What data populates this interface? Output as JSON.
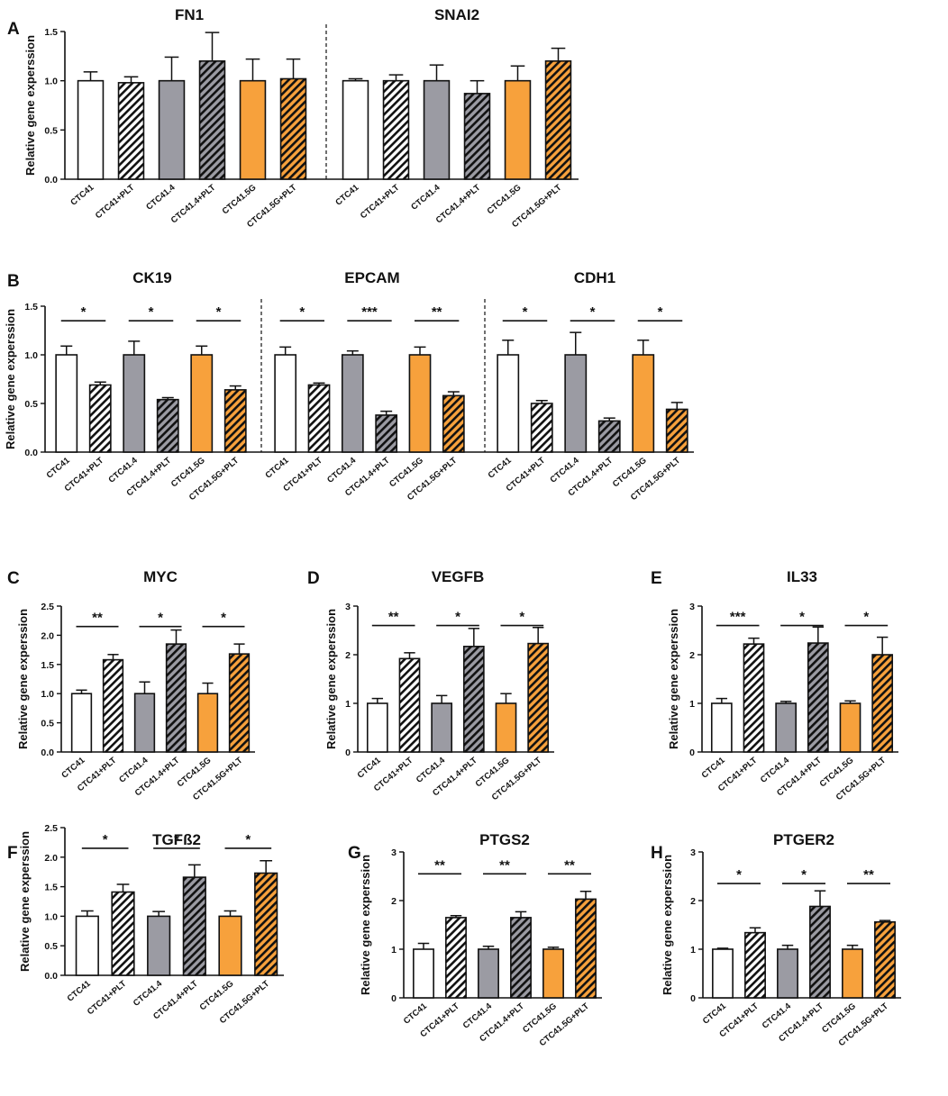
{
  "colors": {
    "white": "#ffffff",
    "gray": "#9b9ba3",
    "orange": "#f7a13c",
    "stroke": "#111111"
  },
  "ylabel": "Relative gene experssion",
  "categories": [
    "CTC41",
    "CTC41+PLT",
    "CTC41.4",
    "CTC41.4+PLT",
    "CTC41.5G",
    "CTC41.5G+PLT"
  ],
  "chart_data": [
    {
      "label": "A",
      "type": "bar",
      "ylabel": "Relative gene experssion",
      "ylim": [
        0,
        1.5
      ],
      "yticks": [
        "0.0",
        "0.5",
        "1.0",
        "1.5"
      ],
      "ytick_values": [
        0,
        0.5,
        1.0,
        1.5
      ],
      "groups": [
        {
          "title": "FN1",
          "values": [
            1.0,
            0.98,
            1.0,
            1.2,
            1.0,
            1.02
          ],
          "errors": [
            0.09,
            0.06,
            0.24,
            0.29,
            0.22,
            0.2
          ],
          "sig": []
        },
        {
          "title": "SNAI2",
          "values": [
            1.0,
            1.0,
            1.0,
            0.87,
            1.0,
            1.2
          ],
          "errors": [
            0.02,
            0.06,
            0.16,
            0.13,
            0.15,
            0.13
          ],
          "sig": []
        }
      ]
    },
    {
      "label": "B",
      "type": "bar",
      "ylabel": "Relative gene experssion",
      "ylim": [
        0,
        1.5
      ],
      "yticks": [
        "0.0",
        "0.5",
        "1.0",
        "1.5"
      ],
      "ytick_values": [
        0,
        0.5,
        1.0,
        1.5
      ],
      "groups": [
        {
          "title": "CK19",
          "values": [
            1.0,
            0.69,
            1.0,
            0.54,
            1.0,
            0.64
          ],
          "errors": [
            0.09,
            0.03,
            0.14,
            0.02,
            0.09,
            0.04
          ],
          "sig": [
            "*",
            "*",
            "*"
          ],
          "sig_y": 1.35
        },
        {
          "title": "EPCAM",
          "values": [
            1.0,
            0.69,
            1.0,
            0.38,
            1.0,
            0.58
          ],
          "errors": [
            0.08,
            0.02,
            0.04,
            0.04,
            0.08,
            0.04
          ],
          "sig": [
            "*",
            "***",
            "**"
          ],
          "sig_y": 1.35
        },
        {
          "title": "CDH1",
          "values": [
            1.0,
            0.5,
            1.0,
            0.32,
            1.0,
            0.44
          ],
          "errors": [
            0.15,
            0.03,
            0.23,
            0.03,
            0.15,
            0.07
          ],
          "sig": [
            "*",
            "*",
            "*"
          ],
          "sig_y": 1.35
        }
      ]
    },
    {
      "label": "C",
      "type": "bar",
      "ylabel": "Relative gene experssion",
      "ylim": [
        0,
        2.5
      ],
      "yticks": [
        "0.0",
        "0.5",
        "1.0",
        "1.5",
        "2.0",
        "2.5"
      ],
      "ytick_values": [
        0,
        0.5,
        1.0,
        1.5,
        2.0,
        2.5
      ],
      "groups": [
        {
          "title": "MYC",
          "values": [
            1.0,
            1.58,
            1.0,
            1.85,
            1.0,
            1.68
          ],
          "errors": [
            0.06,
            0.09,
            0.2,
            0.24,
            0.18,
            0.17
          ],
          "sig": [
            "**",
            "*",
            "*"
          ],
          "sig_y": 2.15
        }
      ]
    },
    {
      "label": "D",
      "type": "bar",
      "ylabel": "Relative gene experssion",
      "ylim": [
        0,
        3
      ],
      "yticks": [
        "0",
        "1",
        "2",
        "3"
      ],
      "ytick_values": [
        0,
        1,
        2,
        3
      ],
      "groups": [
        {
          "title": "VEGFB",
          "values": [
            1.0,
            1.92,
            1.0,
            2.17,
            1.0,
            2.23
          ],
          "errors": [
            0.1,
            0.12,
            0.16,
            0.37,
            0.2,
            0.33
          ],
          "sig": [
            "**",
            "*",
            "*"
          ],
          "sig_y": 2.6
        }
      ]
    },
    {
      "label": "E",
      "type": "bar",
      "ylabel": "Relative gene experssion",
      "ylim": [
        0,
        3
      ],
      "yticks": [
        "0",
        "1",
        "2",
        "3"
      ],
      "ytick_values": [
        0,
        1,
        2,
        3
      ],
      "groups": [
        {
          "title": "IL33",
          "values": [
            1.0,
            2.22,
            1.0,
            2.24,
            1.0,
            2.0
          ],
          "errors": [
            0.1,
            0.12,
            0.04,
            0.33,
            0.05,
            0.36
          ],
          "sig": [
            "***",
            "*",
            "*"
          ],
          "sig_y": 2.6
        }
      ]
    },
    {
      "label": "F",
      "type": "bar",
      "ylabel": "Relative gene experssion",
      "ylim": [
        0,
        2.5
      ],
      "yticks": [
        "0.0",
        "0.5",
        "1.0",
        "1.5",
        "2.0",
        "2.5"
      ],
      "ytick_values": [
        0,
        0.5,
        1.0,
        1.5,
        2.0,
        2.5
      ],
      "groups": [
        {
          "title": "TGFß2",
          "values": [
            1.0,
            1.41,
            1.0,
            1.66,
            1.0,
            1.73
          ],
          "errors": [
            0.09,
            0.13,
            0.08,
            0.21,
            0.09,
            0.21
          ],
          "sig": [
            "*",
            "*",
            "*"
          ],
          "sig_y": 2.15
        }
      ]
    },
    {
      "label": "G",
      "type": "bar",
      "ylabel": "Relative gene experssion",
      "ylim": [
        0,
        3
      ],
      "yticks": [
        "0",
        "1",
        "2",
        "3"
      ],
      "ytick_values": [
        0,
        1,
        2,
        3
      ],
      "groups": [
        {
          "title": "PTGS2",
          "values": [
            1.0,
            1.65,
            1.0,
            1.65,
            1.0,
            2.03
          ],
          "errors": [
            0.12,
            0.04,
            0.06,
            0.12,
            0.04,
            0.16
          ],
          "sig": [
            "**",
            "**",
            "**"
          ],
          "sig_y": 2.55
        }
      ]
    },
    {
      "label": "H",
      "type": "bar",
      "ylabel": "Relative gene experssion",
      "ylim": [
        0,
        3
      ],
      "yticks": [
        "0",
        "1",
        "2",
        "3"
      ],
      "ytick_values": [
        0,
        1,
        2,
        3
      ],
      "groups": [
        {
          "title": "PTGER2",
          "values": [
            1.0,
            1.34,
            1.0,
            1.88,
            1.0,
            1.56
          ],
          "errors": [
            0.02,
            0.1,
            0.08,
            0.32,
            0.08,
            0.03
          ],
          "sig": [
            "*",
            "*",
            "**"
          ],
          "sig_y": 2.35
        }
      ]
    }
  ]
}
